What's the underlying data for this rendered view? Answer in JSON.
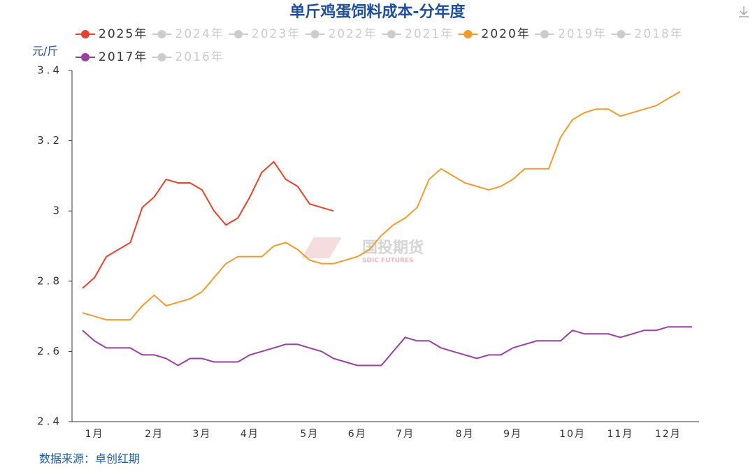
{
  "chart_data": {
    "type": "line",
    "title": "单斤鸡蛋饲料成本-分年度",
    "y_label": "元/斤",
    "source": "数据来源：卓创红期",
    "watermark": "国投期货",
    "watermark_sub": "SDIC FUTURES",
    "categories": [
      null,
      "1月",
      null,
      null,
      null,
      null,
      "2月",
      null,
      null,
      null,
      "3月",
      null,
      null,
      null,
      "4月",
      null,
      null,
      null,
      null,
      "5月",
      null,
      null,
      null,
      "6月",
      null,
      null,
      null,
      "7月",
      null,
      null,
      null,
      null,
      "8月",
      null,
      null,
      null,
      "9月",
      null,
      null,
      null,
      null,
      "10月",
      null,
      null,
      null,
      "11月",
      null,
      null,
      null,
      "12月",
      null,
      null
    ],
    "ylim": [
      2.4,
      3.4
    ],
    "yticks": [
      2.4,
      2.6,
      2.8,
      3,
      3.2,
      3.4
    ],
    "series": [
      {
        "name": "2025年",
        "color": "#e5432d",
        "visible": true,
        "values": [
          2.78,
          2.81,
          2.87,
          2.89,
          2.91,
          3.01,
          3.04,
          3.09,
          3.08,
          3.08,
          3.06,
          3.0,
          2.96,
          2.98,
          3.04,
          3.11,
          3.14,
          3.09,
          3.07,
          3.02,
          3.01,
          3.0,
          null,
          null,
          null,
          null,
          null,
          null,
          null,
          null,
          null,
          null,
          null,
          null,
          null,
          null,
          null,
          null,
          null,
          null,
          null,
          null,
          null,
          null,
          null,
          null,
          null,
          null,
          null,
          null,
          null,
          null
        ]
      },
      {
        "name": "2024年",
        "color": "#cccccc",
        "visible": false
      },
      {
        "name": "2023年",
        "color": "#cccccc",
        "visible": false
      },
      {
        "name": "2022年",
        "color": "#cccccc",
        "visible": false
      },
      {
        "name": "2021年",
        "color": "#cccccc",
        "visible": false
      },
      {
        "name": "2020年",
        "color": "#f39a2f",
        "visible": true,
        "values": [
          2.71,
          2.7,
          2.69,
          2.69,
          2.69,
          2.73,
          2.76,
          2.73,
          2.74,
          2.75,
          2.77,
          2.81,
          2.85,
          2.87,
          2.87,
          2.87,
          2.9,
          2.91,
          2.89,
          2.86,
          2.85,
          2.85,
          2.86,
          2.87,
          2.89,
          2.93,
          2.96,
          2.98,
          3.01,
          3.09,
          3.12,
          3.1,
          3.08,
          3.07,
          3.06,
          3.07,
          3.09,
          3.12,
          3.12,
          3.12,
          3.21,
          3.26,
          3.28,
          3.29,
          3.29,
          3.27,
          3.28,
          3.29,
          3.3,
          3.32,
          3.34,
          null
        ]
      },
      {
        "name": "2019年",
        "color": "#cccccc",
        "visible": false
      },
      {
        "name": "2018年",
        "color": "#cccccc",
        "visible": false
      },
      {
        "name": "2017年",
        "color": "#9a3fa0",
        "visible": true,
        "values": [
          2.66,
          2.63,
          2.61,
          2.61,
          2.61,
          2.59,
          2.59,
          2.58,
          2.56,
          2.58,
          2.58,
          2.57,
          2.57,
          2.57,
          2.59,
          2.6,
          2.61,
          2.62,
          2.62,
          2.61,
          2.6,
          2.58,
          2.57,
          2.56,
          2.56,
          2.56,
          2.6,
          2.64,
          2.63,
          2.63,
          2.61,
          2.6,
          2.59,
          2.58,
          2.59,
          2.59,
          2.61,
          2.62,
          2.63,
          2.63,
          2.63,
          2.66,
          2.65,
          2.65,
          2.65,
          2.64,
          2.65,
          2.66,
          2.66,
          2.67,
          2.67,
          2.67
        ]
      },
      {
        "name": "2016年",
        "color": "#cccccc",
        "visible": false
      }
    ]
  }
}
